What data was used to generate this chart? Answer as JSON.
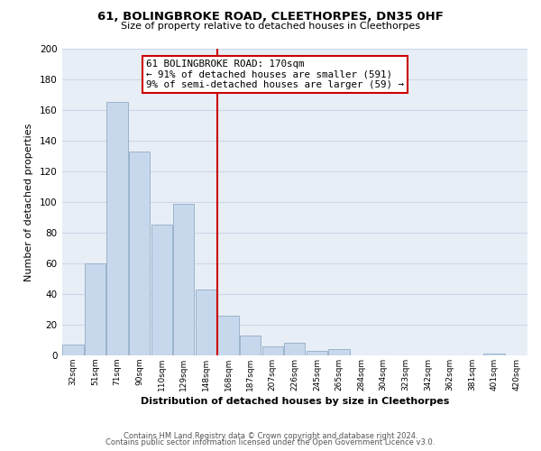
{
  "title": "61, BOLINGBROKE ROAD, CLEETHORPES, DN35 0HF",
  "subtitle": "Size of property relative to detached houses in Cleethorpes",
  "xlabel": "Distribution of detached houses by size in Cleethorpes",
  "ylabel": "Number of detached properties",
  "footer_line1": "Contains HM Land Registry data © Crown copyright and database right 2024.",
  "footer_line2": "Contains public sector information licensed under the Open Government Licence v3.0.",
  "bin_labels": [
    "32sqm",
    "51sqm",
    "71sqm",
    "90sqm",
    "110sqm",
    "129sqm",
    "148sqm",
    "168sqm",
    "187sqm",
    "207sqm",
    "226sqm",
    "245sqm",
    "265sqm",
    "284sqm",
    "304sqm",
    "323sqm",
    "342sqm",
    "362sqm",
    "381sqm",
    "401sqm",
    "420sqm"
  ],
  "bar_heights": [
    7,
    60,
    165,
    133,
    85,
    99,
    43,
    26,
    13,
    6,
    8,
    3,
    4,
    0,
    0,
    0,
    0,
    0,
    0,
    1,
    0
  ],
  "bar_color": "#c8d8ec",
  "bar_edge_color": "#9ab4cc",
  "vline_x_index": 7,
  "vline_color": "#cc0000",
  "annotation_title": "61 BOLINGBROKE ROAD: 170sqm",
  "annotation_line1": "← 91% of detached houses are smaller (591)",
  "annotation_line2": "9% of semi-detached houses are larger (59) →",
  "annotation_box_color": "white",
  "annotation_box_edge": "#cc0000",
  "ylim": [
    0,
    200
  ],
  "yticks": [
    0,
    20,
    40,
    60,
    80,
    100,
    120,
    140,
    160,
    180,
    200
  ],
  "grid_color": "#ccd8e8",
  "background_color": "#ffffff",
  "plot_bg_color": "#e8eef6"
}
